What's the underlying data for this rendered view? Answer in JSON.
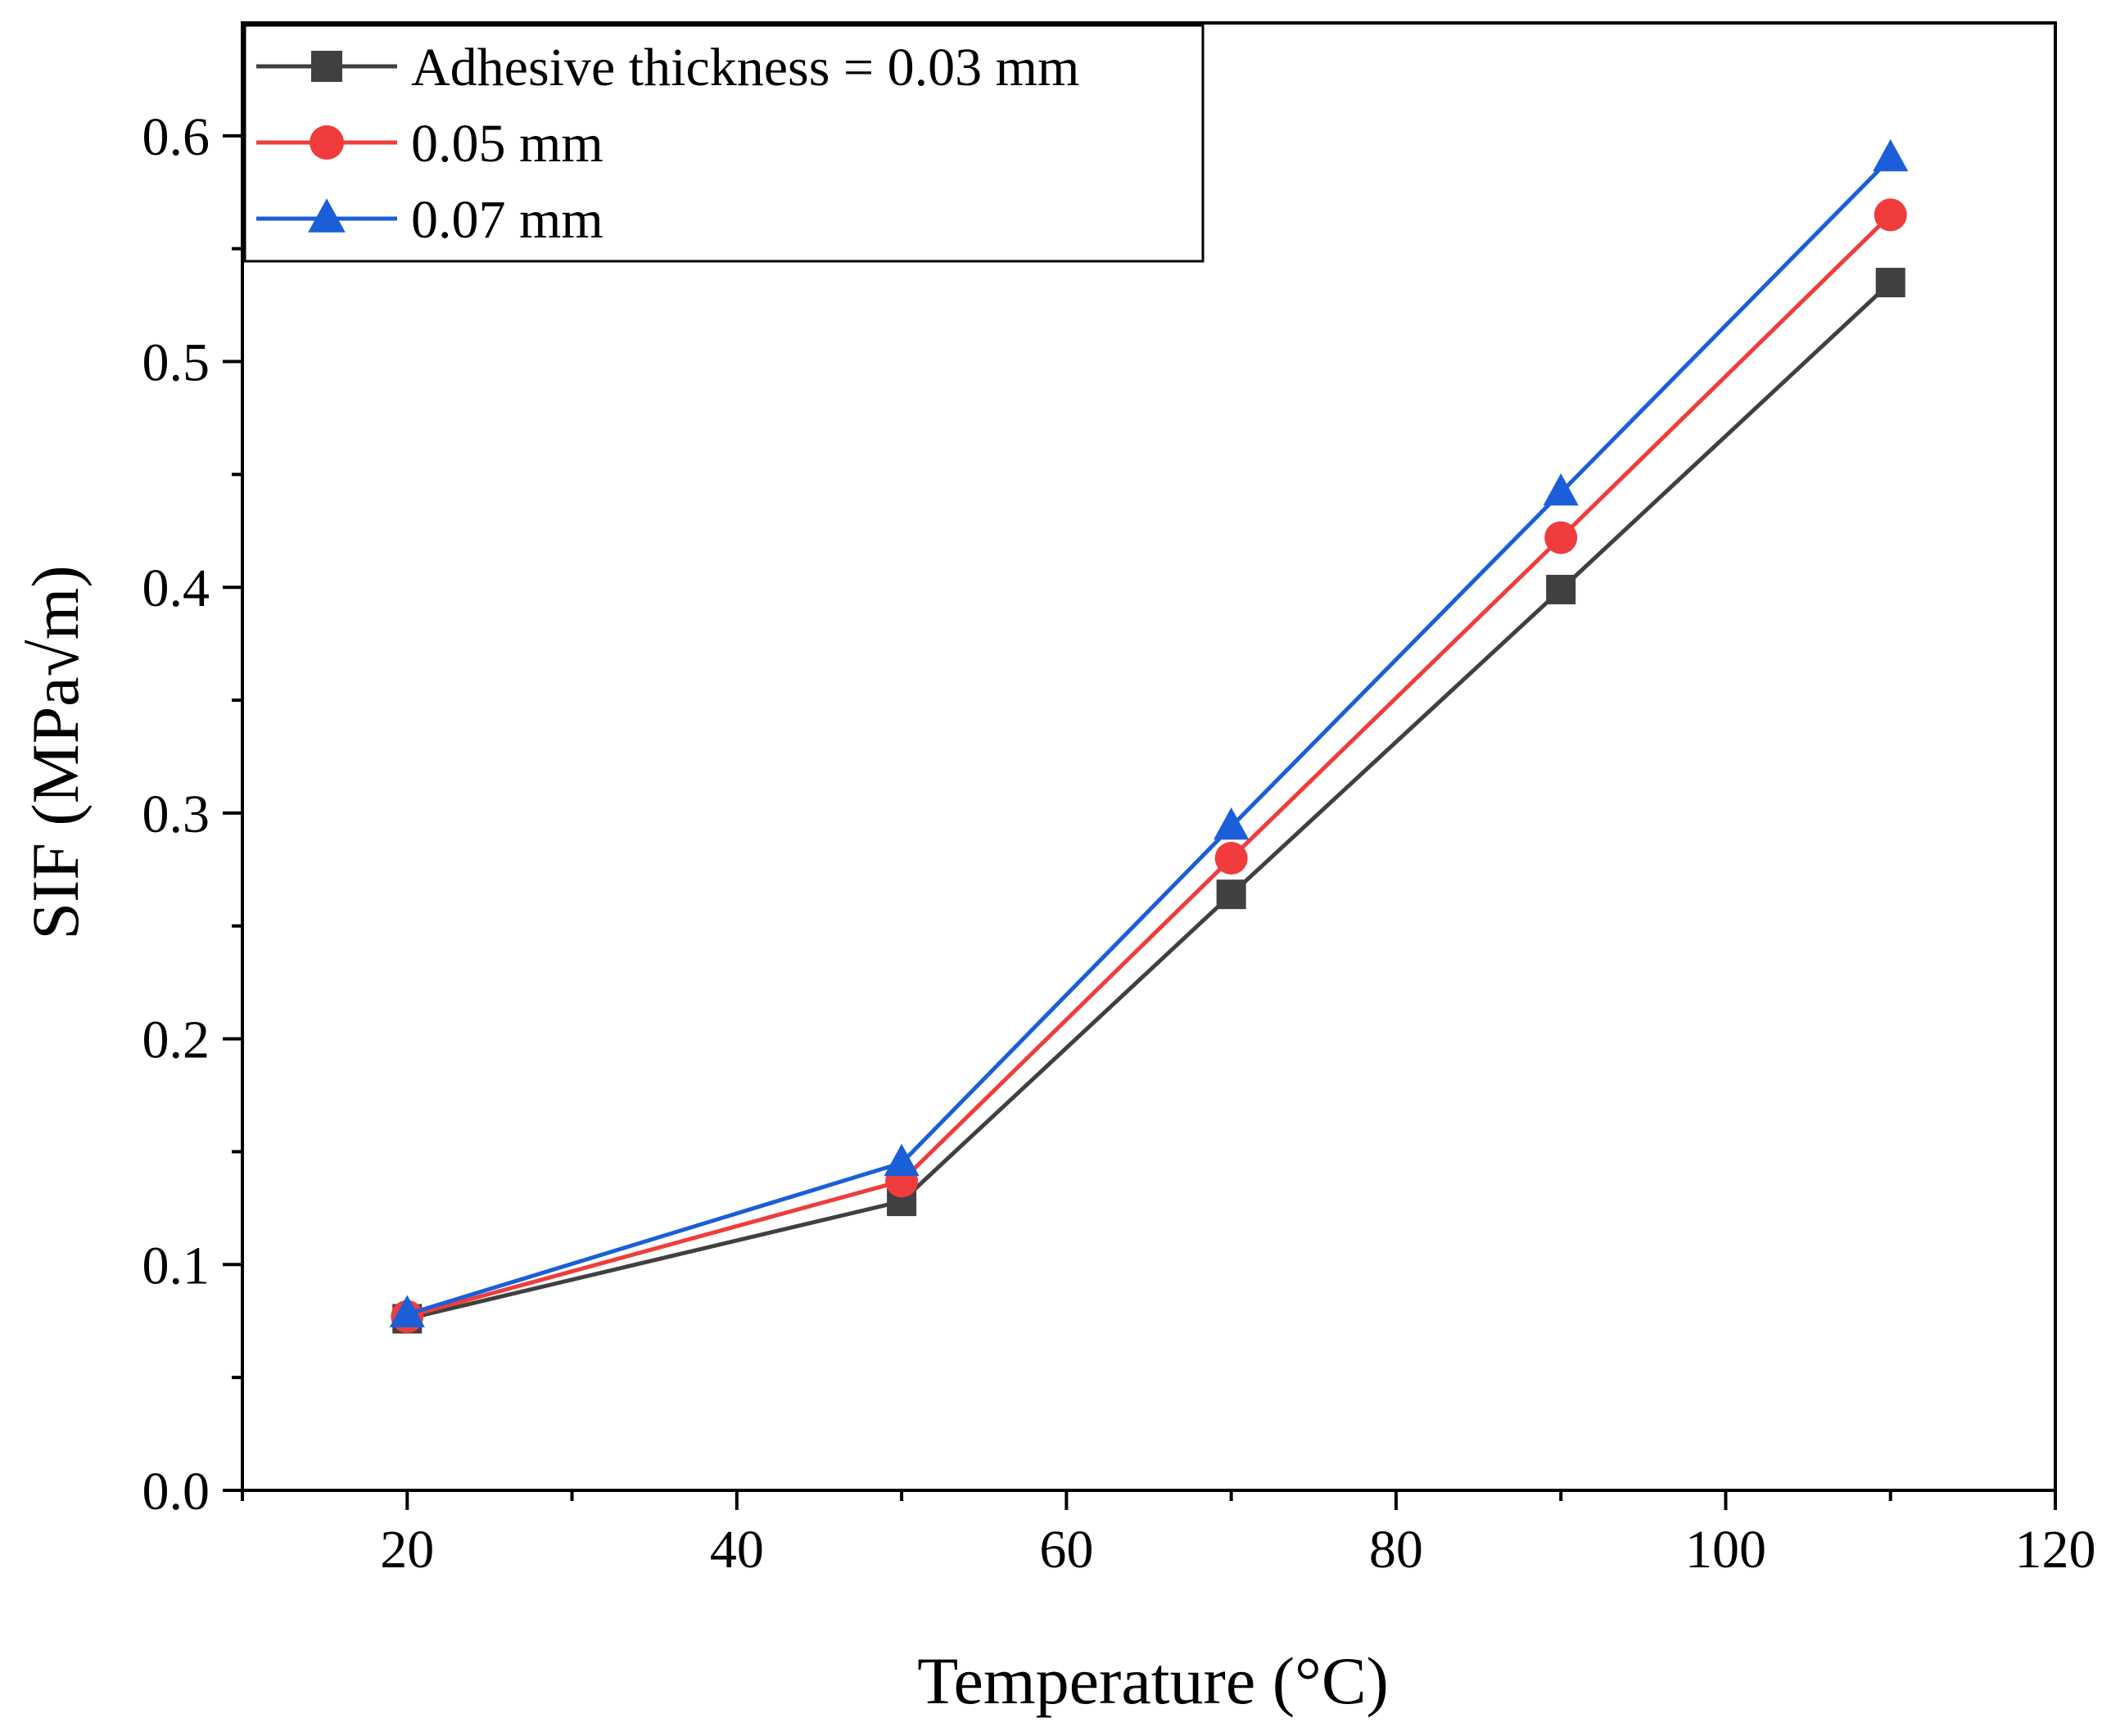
{
  "chart_data": {
    "type": "line",
    "xlabel": "Temperature (°C)",
    "ylabel": "SIF (MPa√m)",
    "xlim": [
      10,
      120
    ],
    "ylim": [
      0,
      0.65
    ],
    "xticks": [
      20,
      40,
      60,
      80,
      100,
      120
    ],
    "xtick_labels": [
      "20",
      "40",
      "60",
      "80",
      "100",
      "120"
    ],
    "yticks": [
      0,
      0.1,
      0.2,
      0.3,
      0.4,
      0.5,
      0.6
    ],
    "ytick_labels": [
      "0.0",
      "0.1",
      "0.2",
      "0.3",
      "0.4",
      "0.5",
      "0.6"
    ],
    "grid": false,
    "legend": "top-left",
    "x": [
      20,
      50,
      70,
      90,
      110
    ],
    "series": [
      {
        "name": "Adhesive thickness = 0.03 mm",
        "color": "#404040",
        "marker": "square",
        "values": [
          0.076,
          0.128,
          0.264,
          0.399,
          0.535
        ]
      },
      {
        "name": "0.05 mm",
        "color": "#f03c3c",
        "marker": "circle",
        "values": [
          0.077,
          0.137,
          0.28,
          0.422,
          0.565
        ]
      },
      {
        "name": "0.07 mm",
        "color": "#1a5fd8",
        "marker": "triangle",
        "values": [
          0.078,
          0.145,
          0.294,
          0.442,
          0.59
        ]
      }
    ]
  }
}
